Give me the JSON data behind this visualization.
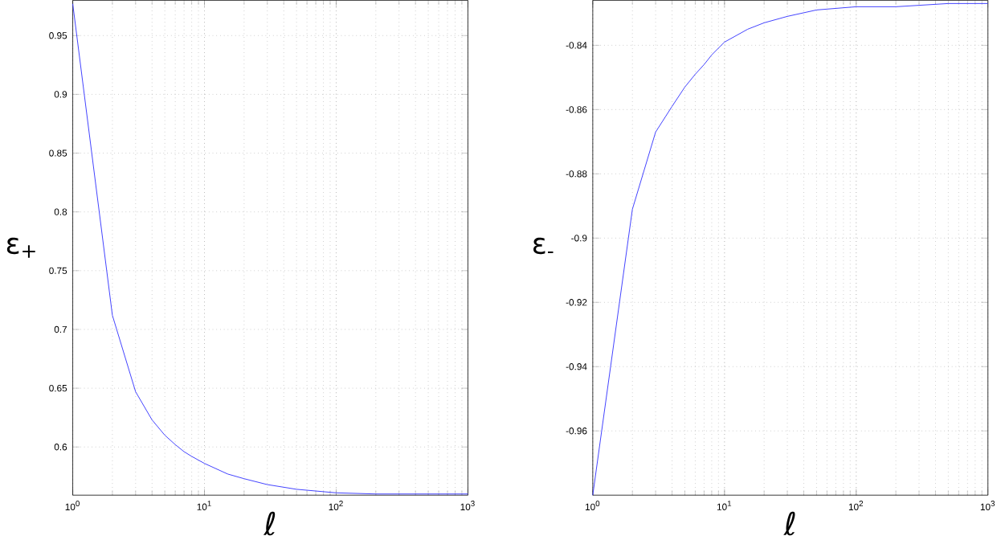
{
  "chart_data": [
    {
      "type": "line",
      "xlabel": "ℓ",
      "ylabel": "ε$_{+}$",
      "log": "x",
      "grid": true,
      "x": [
        1,
        2,
        3,
        4,
        5,
        6,
        7,
        8,
        10,
        15,
        20,
        30,
        50,
        100,
        200,
        500,
        1000
      ],
      "series": [
        {
          "color": "#4040ff",
          "values": [
            0.977,
            0.712,
            0.647,
            0.623,
            0.61,
            0.602,
            0.596,
            0.592,
            0.586,
            0.577,
            0.573,
            0.568,
            0.564,
            0.561,
            0.56,
            0.56,
            0.56
          ]
        }
      ],
      "xlim": [
        1,
        1000
      ],
      "ylim": [
        0.559,
        0.98
      ],
      "xticks": [
        {
          "value": 1,
          "label": "10$^{0}$"
        },
        {
          "value": 10,
          "label": "10$^{1}$"
        },
        {
          "value": 100,
          "label": "10$^{2}$"
        },
        {
          "value": 1000,
          "label": "10$^{3}$"
        }
      ],
      "yticks": [
        0.6,
        0.65,
        0.7,
        0.75,
        0.8,
        0.85,
        0.9,
        0.95
      ]
    },
    {
      "type": "line",
      "xlabel": "ℓ",
      "ylabel": "ε$_{-}$",
      "log": "x",
      "grid": true,
      "x": [
        1,
        2,
        3,
        4,
        5,
        6,
        7,
        8,
        10,
        15,
        20,
        30,
        50,
        100,
        200,
        500,
        1000
      ],
      "series": [
        {
          "color": "#4040ff",
          "values": [
            -0.98,
            -0.891,
            -0.867,
            -0.859,
            -0.853,
            -0.849,
            -0.846,
            -0.843,
            -0.839,
            -0.835,
            -0.833,
            -0.831,
            -0.829,
            -0.828,
            -0.828,
            -0.827,
            -0.827
          ]
        }
      ],
      "xlim": [
        1,
        1000
      ],
      "ylim": [
        -0.98,
        -0.826
      ],
      "xticks": [
        {
          "value": 1,
          "label": "10$^{0}$"
        },
        {
          "value": 10,
          "label": "10$^{1}$"
        },
        {
          "value": 100,
          "label": "10$^{2}$"
        },
        {
          "value": 1000,
          "label": "10$^{3}$"
        }
      ],
      "yticks": [
        -0.96,
        -0.94,
        -0.92,
        -0.9,
        -0.88,
        -0.86,
        -0.84
      ]
    }
  ]
}
